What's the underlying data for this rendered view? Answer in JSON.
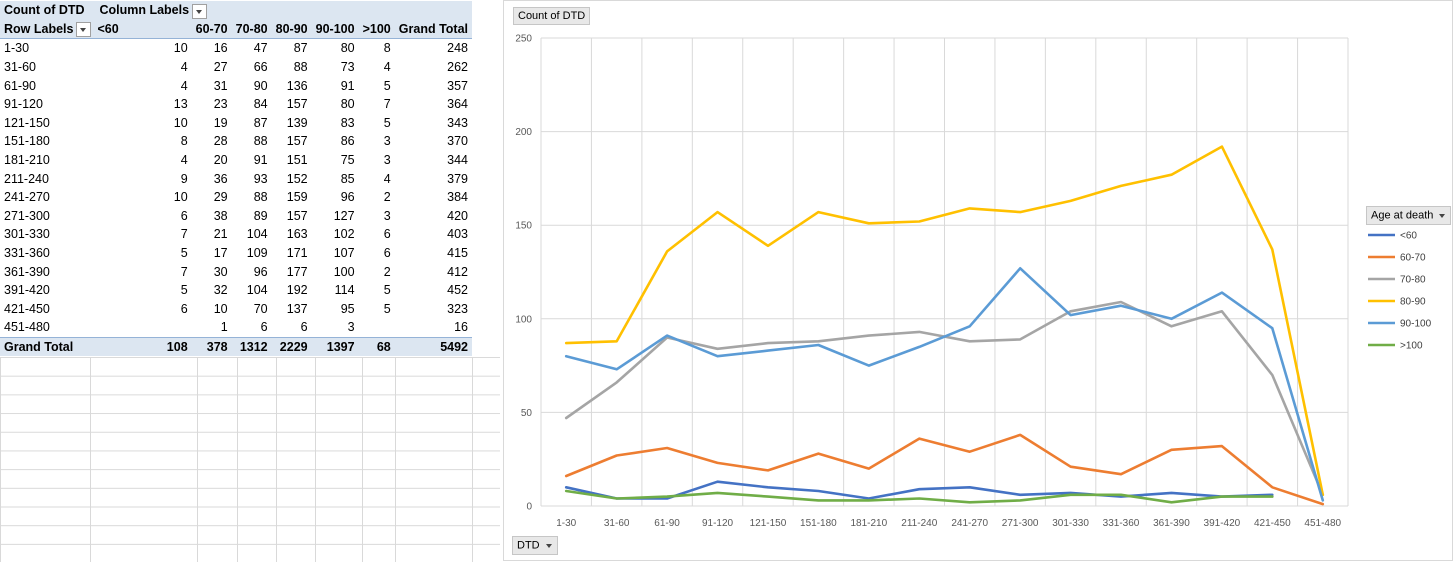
{
  "pivot": {
    "value_field": "Count of DTD",
    "column_labels": "Column Labels",
    "row_labels": "Row Labels",
    "columns": [
      "<60",
      "60-70",
      "70-80",
      "80-90",
      "90-100",
      ">100",
      "Grand Total"
    ],
    "rows": [
      {
        "label": "1-30",
        "cells": [
          "10",
          "16",
          "47",
          "87",
          "80",
          "8",
          "248"
        ]
      },
      {
        "label": "31-60",
        "cells": [
          "4",
          "27",
          "66",
          "88",
          "73",
          "4",
          "262"
        ]
      },
      {
        "label": "61-90",
        "cells": [
          "4",
          "31",
          "90",
          "136",
          "91",
          "5",
          "357"
        ]
      },
      {
        "label": "91-120",
        "cells": [
          "13",
          "23",
          "84",
          "157",
          "80",
          "7",
          "364"
        ]
      },
      {
        "label": "121-150",
        "cells": [
          "10",
          "19",
          "87",
          "139",
          "83",
          "5",
          "343"
        ]
      },
      {
        "label": "151-180",
        "cells": [
          "8",
          "28",
          "88",
          "157",
          "86",
          "3",
          "370"
        ]
      },
      {
        "label": "181-210",
        "cells": [
          "4",
          "20",
          "91",
          "151",
          "75",
          "3",
          "344"
        ]
      },
      {
        "label": "211-240",
        "cells": [
          "9",
          "36",
          "93",
          "152",
          "85",
          "4",
          "379"
        ]
      },
      {
        "label": "241-270",
        "cells": [
          "10",
          "29",
          "88",
          "159",
          "96",
          "2",
          "384"
        ]
      },
      {
        "label": "271-300",
        "cells": [
          "6",
          "38",
          "89",
          "157",
          "127",
          "3",
          "420"
        ]
      },
      {
        "label": "301-330",
        "cells": [
          "7",
          "21",
          "104",
          "163",
          "102",
          "6",
          "403"
        ]
      },
      {
        "label": "331-360",
        "cells": [
          "5",
          "17",
          "109",
          "171",
          "107",
          "6",
          "415"
        ]
      },
      {
        "label": "361-390",
        "cells": [
          "7",
          "30",
          "96",
          "177",
          "100",
          "2",
          "412"
        ]
      },
      {
        "label": "391-420",
        "cells": [
          "5",
          "32",
          "104",
          "192",
          "114",
          "5",
          "452"
        ]
      },
      {
        "label": "421-450",
        "cells": [
          "6",
          "10",
          "70",
          "137",
          "95",
          "5",
          "323"
        ]
      },
      {
        "label": "451-480",
        "cells": [
          "",
          "1",
          "6",
          "6",
          "3",
          "",
          "16"
        ]
      }
    ],
    "grand_total": {
      "label": "Grand Total",
      "cells": [
        "108",
        "378",
        "1312",
        "2229",
        "1397",
        "68",
        "5492"
      ]
    }
  },
  "chart_data": {
    "type": "line",
    "title": "",
    "value_button": "Count of DTD",
    "axis_button": "DTD",
    "legend_title": "Age at death",
    "legend_position": "right",
    "grid": true,
    "ylim": [
      0,
      250
    ],
    "yticks": [
      0,
      50,
      100,
      150,
      200,
      250
    ],
    "categories": [
      "1-30",
      "31-60",
      "61-90",
      "91-120",
      "121-150",
      "151-180",
      "181-210",
      "211-240",
      "241-270",
      "271-300",
      "301-330",
      "331-360",
      "361-390",
      "391-420",
      "421-450",
      "451-480"
    ],
    "series": [
      {
        "name": "<60",
        "color": "#4472c4",
        "values": [
          10,
          4,
          4,
          13,
          10,
          8,
          4,
          9,
          10,
          6,
          7,
          5,
          7,
          5,
          6,
          null
        ]
      },
      {
        "name": "60-70",
        "color": "#ed7d31",
        "values": [
          16,
          27,
          31,
          23,
          19,
          28,
          20,
          36,
          29,
          38,
          21,
          17,
          30,
          32,
          10,
          1
        ]
      },
      {
        "name": "70-80",
        "color": "#a5a5a5",
        "values": [
          47,
          66,
          90,
          84,
          87,
          88,
          91,
          93,
          88,
          89,
          104,
          109,
          96,
          104,
          70,
          6
        ]
      },
      {
        "name": "80-90",
        "color": "#ffc000",
        "values": [
          87,
          88,
          136,
          157,
          139,
          157,
          151,
          152,
          159,
          157,
          163,
          171,
          177,
          192,
          137,
          6
        ]
      },
      {
        "name": "90-100",
        "color": "#5b9bd5",
        "values": [
          80,
          73,
          91,
          80,
          83,
          86,
          75,
          85,
          96,
          127,
          102,
          107,
          100,
          114,
          95,
          3
        ]
      },
      {
        "name": ">100",
        "color": "#70ad47",
        "values": [
          8,
          4,
          5,
          7,
          5,
          3,
          3,
          4,
          2,
          3,
          6,
          6,
          2,
          5,
          5,
          null
        ]
      }
    ]
  }
}
